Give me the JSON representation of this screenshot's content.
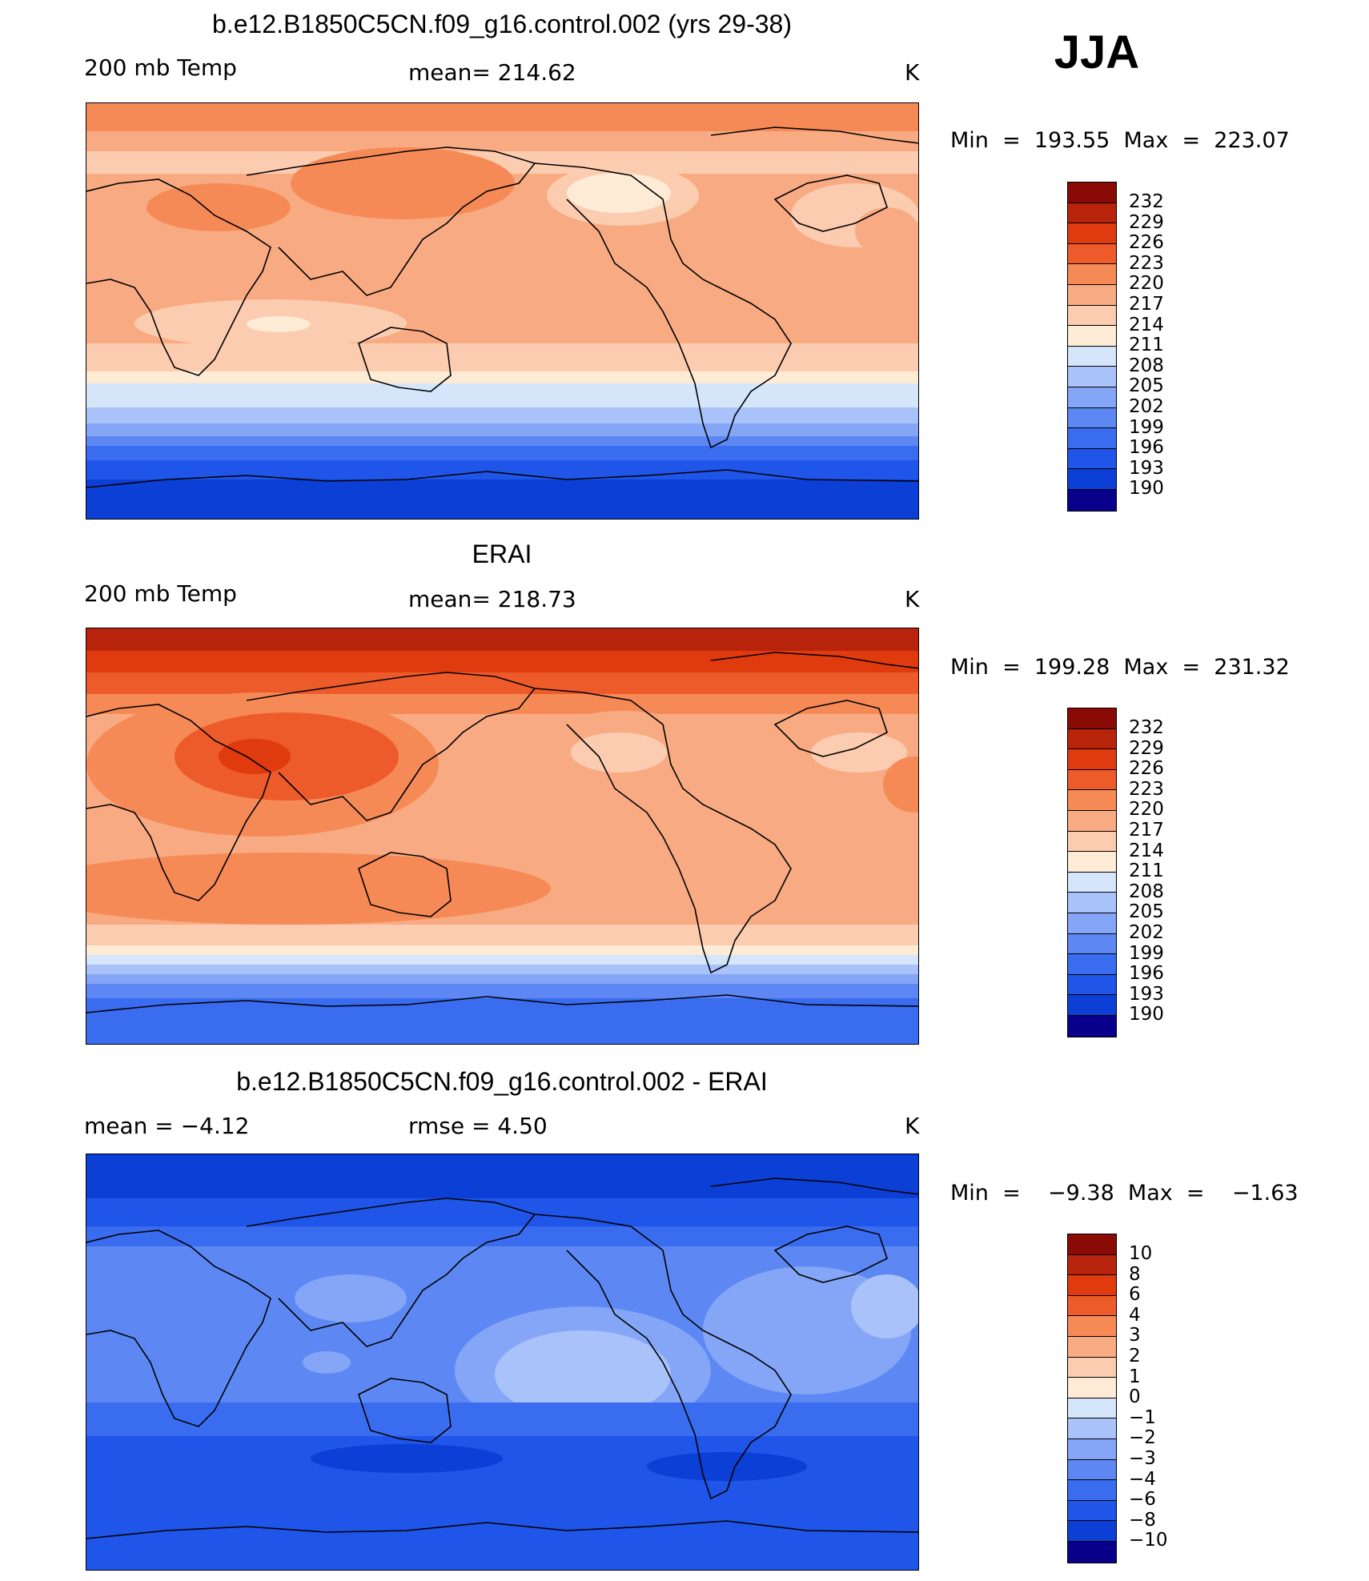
{
  "season": "JJA",
  "palette": [
    "#08008a",
    "#0a2a9c",
    "#0b3fd6",
    "#1f55e8",
    "#3a6cf0",
    "#5d88f4",
    "#85a6f7",
    "#a9c2f9",
    "#d5e6fb",
    "#fdebd6",
    "#fcccb0",
    "#f8ab83",
    "#f68a56",
    "#ee5b2a",
    "#e03a0f",
    "#b8230b",
    "#8a0b05"
  ],
  "panels": [
    {
      "title": "b.e12.B1850C5CN.f09_g16.control.002 (yrs 29-38)",
      "left_label": "200 mb Temp",
      "center_label": "mean=  214.62",
      "units": "K",
      "min_max": "Min  =  193.55  Max  =  223.07",
      "colorbar_labels": [
        "232",
        "229",
        "226",
        "223",
        "220",
        "217",
        "214",
        "211",
        "208",
        "205",
        "202",
        "199",
        "196",
        "193",
        "190"
      ]
    },
    {
      "title": "ERAI",
      "left_label": "200 mb Temp",
      "center_label": "mean=  218.73",
      "units": "K",
      "min_max": "Min  =  199.28  Max  =  231.32",
      "colorbar_labels": [
        "232",
        "229",
        "226",
        "223",
        "220",
        "217",
        "214",
        "211",
        "208",
        "205",
        "202",
        "199",
        "196",
        "193",
        "190"
      ]
    },
    {
      "title": "b.e12.B1850C5CN.f09_g16.control.002 - ERAI",
      "left_label": "mean  =    −4.12",
      "center_label": "rmse  =     4.50",
      "units": "K",
      "min_max": "Min  =    −9.38  Max  =    −1.63",
      "colorbar_labels": [
        "10",
        "8",
        "6",
        "4",
        "3",
        "2",
        "1",
        "0",
        "−1",
        "−2",
        "−3",
        "−4",
        "−6",
        "−8",
        "−10"
      ]
    }
  ]
}
